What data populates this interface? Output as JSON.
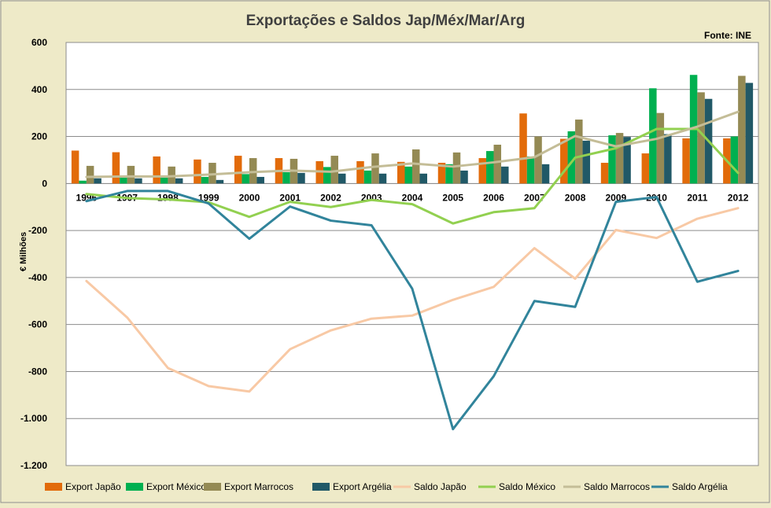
{
  "chart_data": {
    "type": "bar+line",
    "title": "Exportações e Saldos Jap/Méx/Mar/Arg",
    "source": "Fonte: INE",
    "ylabel": "€ Milhões",
    "xlabel": "",
    "ylim": [
      -1200,
      600
    ],
    "yticks": [
      600,
      400,
      200,
      0,
      -200,
      -400,
      -600,
      -800,
      -1000,
      -1200
    ],
    "ytick_labels": [
      "600",
      "400",
      "200",
      "0",
      "-200",
      "-400",
      "-600",
      "-800",
      "-1.000",
      "-1.200"
    ],
    "categories": [
      "1996",
      "1997",
      "1998",
      "1999",
      "2000",
      "2001",
      "2002",
      "2003",
      "2004",
      "2005",
      "2006",
      "2007",
      "2008",
      "2009",
      "2010",
      "2011",
      "2012"
    ],
    "bar_series": [
      {
        "name": "Export Japão",
        "color": "#e26b0a",
        "values": [
          140,
          133,
          115,
          102,
          118,
          108,
          95,
          95,
          92,
          88,
          108,
          298,
          190,
          88,
          128,
          192,
          192
        ]
      },
      {
        "name": "Export México",
        "color": "#00b050",
        "values": [
          12,
          25,
          25,
          28,
          40,
          48,
          70,
          55,
          72,
          82,
          138,
          115,
          222,
          205,
          405,
          462,
          200
        ]
      },
      {
        "name": "Export Marrocos",
        "color": "#948a54",
        "values": [
          75,
          75,
          72,
          88,
          108,
          105,
          118,
          128,
          145,
          132,
          165,
          200,
          272,
          215,
          300,
          388,
          458
        ]
      },
      {
        "name": "Export Argélia",
        "color": "#215967",
        "values": [
          22,
          22,
          22,
          15,
          28,
          45,
          42,
          42,
          42,
          55,
          72,
          82,
          182,
          198,
          210,
          360,
          428
        ]
      }
    ],
    "line_series": [
      {
        "name": "Saldo Japão",
        "color": "#f8c9a5",
        "values": [
          -415,
          -570,
          -785,
          -862,
          -885,
          -705,
          -625,
          -575,
          -562,
          -495,
          -440,
          -275,
          -405,
          -198,
          -232,
          -150,
          -105
        ]
      },
      {
        "name": "Saldo México",
        "color": "#92d050",
        "values": [
          -45,
          -62,
          -68,
          -80,
          -142,
          -78,
          -100,
          -70,
          -88,
          -170,
          -122,
          -105,
          110,
          150,
          232,
          232,
          45
        ]
      },
      {
        "name": "Saldo Marrocos",
        "color": "#c4bd97",
        "values": [
          28,
          30,
          30,
          38,
          48,
          55,
          50,
          70,
          85,
          72,
          90,
          112,
          202,
          158,
          190,
          242,
          305
        ]
      },
      {
        "name": "Saldo Argélia",
        "color": "#31849b",
        "values": [
          -75,
          -32,
          -32,
          -85,
          -235,
          -98,
          -158,
          -178,
          -448,
          -1045,
          -820,
          -500,
          -525,
          -78,
          -58,
          -418,
          -372
        ]
      }
    ],
    "legend_position": "bottom",
    "grid": true
  }
}
